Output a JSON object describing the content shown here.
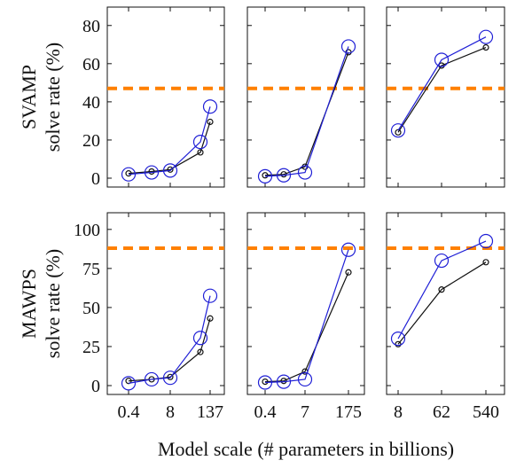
{
  "figure": {
    "xlabel": "Model scale (# parameters in billions)",
    "rows": [
      {
        "label_line1": "SVAMP",
        "label_line2": "solve rate (%)"
      },
      {
        "label_line1": "MAWPS",
        "label_line2": "solve rate (%)"
      }
    ],
    "colors": {
      "blue": "#1f1fd6",
      "black": "#111111",
      "orange": "#ff8000"
    }
  },
  "chart_data": [
    {
      "type": "line",
      "row": "SVAMP",
      "x": [
        "0.4",
        "2",
        "8",
        "68",
        "137"
      ],
      "xticks": [
        "0.4",
        "8",
        "137"
      ],
      "ylim": [
        0,
        85
      ],
      "yticks": [
        0,
        20,
        40,
        60,
        80
      ],
      "reference_line": 47,
      "series": [
        {
          "values": [
            2.5,
            3.5,
            4.5,
            13.5,
            29.5
          ]
        },
        {
          "values": [
            2,
            3,
            4,
            19,
            37.5
          ]
        }
      ]
    },
    {
      "type": "line",
      "row": "SVAMP",
      "x": [
        "0.4",
        "2",
        "7",
        "175"
      ],
      "xticks": [
        "0.4",
        "7",
        "175"
      ],
      "ylim": [
        0,
        85
      ],
      "yticks": [
        0,
        20,
        40,
        60,
        80
      ],
      "reference_line": 47,
      "series": [
        {
          "values": [
            1.5,
            2,
            6,
            66
          ]
        },
        {
          "values": [
            1,
            1.5,
            3,
            69
          ]
        }
      ]
    },
    {
      "type": "line",
      "row": "SVAMP",
      "x": [
        "8",
        "62",
        "540"
      ],
      "xticks": [
        "8",
        "62",
        "540"
      ],
      "ylim": [
        0,
        85
      ],
      "yticks": [
        0,
        20,
        40,
        60,
        80
      ],
      "reference_line": 47,
      "series": [
        {
          "values": [
            24,
            59,
            68.5
          ]
        },
        {
          "values": [
            25,
            62,
            74
          ]
        }
      ]
    },
    {
      "type": "line",
      "row": "MAWPS",
      "x": [
        "0.4",
        "2",
        "8",
        "68",
        "137"
      ],
      "xticks": [
        "0.4",
        "8",
        "137"
      ],
      "ylim": [
        0,
        105
      ],
      "yticks": [
        0,
        25,
        50,
        75,
        100
      ],
      "reference_line": 88,
      "series": [
        {
          "values": [
            3,
            4,
            5.5,
            21.5,
            43
          ]
        },
        {
          "values": [
            1.5,
            4,
            5,
            30.5,
            57.5
          ]
        }
      ]
    },
    {
      "type": "line",
      "row": "MAWPS",
      "x": [
        "0.4",
        "2",
        "7",
        "175"
      ],
      "xticks": [
        "0.4",
        "7",
        "175"
      ],
      "ylim": [
        0,
        105
      ],
      "yticks": [
        0,
        25,
        50,
        75,
        100
      ],
      "reference_line": 88,
      "series": [
        {
          "values": [
            2.5,
            3,
            9,
            72.5
          ]
        },
        {
          "values": [
            2,
            2.5,
            4,
            87
          ]
        }
      ]
    },
    {
      "type": "line",
      "row": "MAWPS",
      "x": [
        "8",
        "62",
        "540"
      ],
      "xticks": [
        "8",
        "62",
        "540"
      ],
      "ylim": [
        0,
        105
      ],
      "yticks": [
        0,
        25,
        50,
        75,
        100
      ],
      "reference_line": 88,
      "series": [
        {
          "values": [
            26.5,
            61.5,
            79
          ]
        },
        {
          "values": [
            30,
            80,
            92.5
          ]
        }
      ]
    }
  ]
}
